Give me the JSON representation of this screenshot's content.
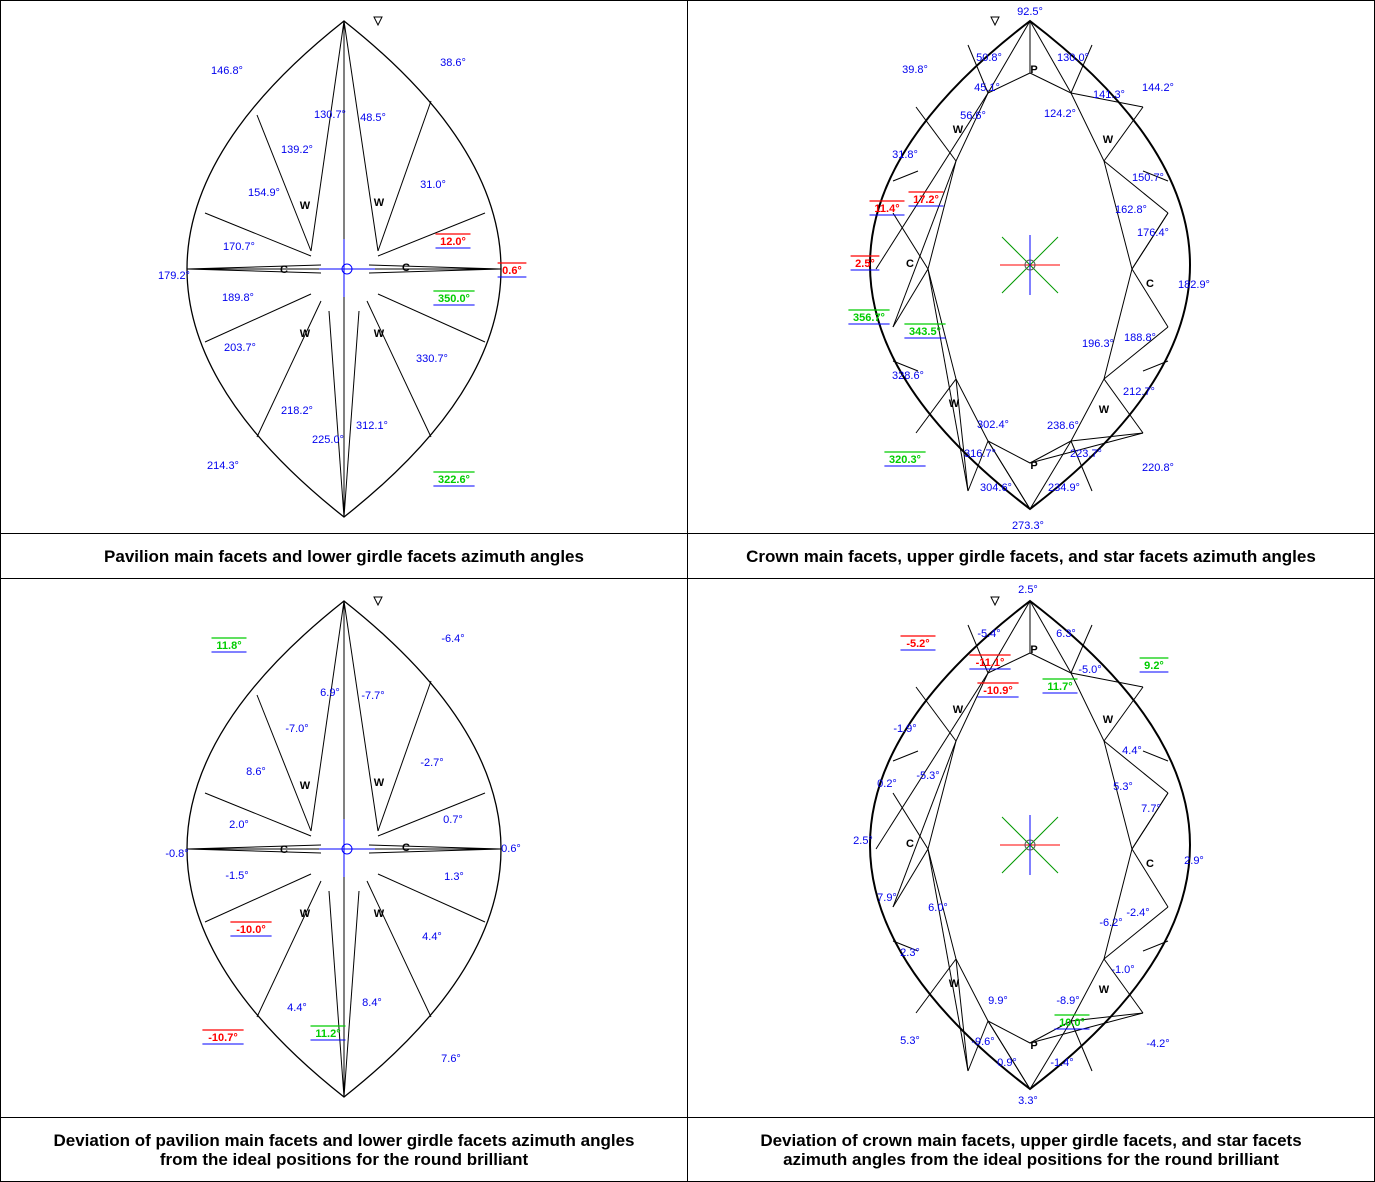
{
  "panels": [
    {
      "id": "pavilion-azimuth",
      "caption": "Pavilion main facets and lower girdle facets azimuth angles",
      "facet_letters": [
        "W",
        "W",
        "C",
        "C",
        "W",
        "W"
      ],
      "labels": [
        {
          "t": "146.8°",
          "c": "blue",
          "u": false
        },
        {
          "t": "38.6°",
          "c": "blue",
          "u": false
        },
        {
          "t": "130.7°",
          "c": "blue",
          "u": false
        },
        {
          "t": "48.5°",
          "c": "blue",
          "u": false
        },
        {
          "t": "139.2°",
          "c": "blue",
          "u": false
        },
        {
          "t": "154.9°",
          "c": "blue",
          "u": false
        },
        {
          "t": "31.0°",
          "c": "blue",
          "u": false
        },
        {
          "t": "12.0°",
          "c": "red",
          "u": true
        },
        {
          "t": "170.7°",
          "c": "blue",
          "u": false
        },
        {
          "t": "179.2°",
          "c": "blue",
          "u": false
        },
        {
          "t": "0.6°",
          "c": "red",
          "u": true
        },
        {
          "t": "189.8°",
          "c": "blue",
          "u": false
        },
        {
          "t": "350.0°",
          "c": "green",
          "u": true
        },
        {
          "t": "203.7°",
          "c": "blue",
          "u": false
        },
        {
          "t": "330.7°",
          "c": "blue",
          "u": false
        },
        {
          "t": "218.2°",
          "c": "blue",
          "u": false
        },
        {
          "t": "312.1°",
          "c": "blue",
          "u": false
        },
        {
          "t": "225.0°",
          "c": "blue",
          "u": false
        },
        {
          "t": "214.3°",
          "c": "blue",
          "u": false
        },
        {
          "t": "322.6°",
          "c": "green",
          "u": true
        }
      ]
    },
    {
      "id": "crown-azimuth",
      "caption": "Crown main facets, upper girdle facets, and star facets azimuth angles",
      "facet_letters": [
        "P",
        "W",
        "W",
        "C",
        "C",
        "W",
        "W",
        "P"
      ],
      "labels": [
        {
          "t": "92.5°",
          "c": "blue",
          "u": false
        },
        {
          "t": "50.8°",
          "c": "blue",
          "u": false
        },
        {
          "t": "130.0°",
          "c": "blue",
          "u": false
        },
        {
          "t": "39.8°",
          "c": "blue",
          "u": false
        },
        {
          "t": "45.1°",
          "c": "blue",
          "u": false
        },
        {
          "t": "141.3°",
          "c": "blue",
          "u": false
        },
        {
          "t": "144.2°",
          "c": "blue",
          "u": false
        },
        {
          "t": "56.6°",
          "c": "blue",
          "u": false
        },
        {
          "t": "124.2°",
          "c": "blue",
          "u": false
        },
        {
          "t": "31.8°",
          "c": "blue",
          "u": false
        },
        {
          "t": "150.7°",
          "c": "blue",
          "u": false
        },
        {
          "t": "11.4°",
          "c": "red",
          "u": true
        },
        {
          "t": "17.2°",
          "c": "red",
          "u": true
        },
        {
          "t": "162.8°",
          "c": "blue",
          "u": false
        },
        {
          "t": "176.4°",
          "c": "blue",
          "u": false
        },
        {
          "t": "2.5°",
          "c": "red",
          "u": true
        },
        {
          "t": "182.9°",
          "c": "blue",
          "u": false
        },
        {
          "t": "356.7°",
          "c": "green",
          "u": true
        },
        {
          "t": "343.5°",
          "c": "green",
          "u": true
        },
        {
          "t": "196.3°",
          "c": "blue",
          "u": false
        },
        {
          "t": "188.8°",
          "c": "blue",
          "u": false
        },
        {
          "t": "328.6°",
          "c": "blue",
          "u": false
        },
        {
          "t": "212.7°",
          "c": "blue",
          "u": false
        },
        {
          "t": "302.4°",
          "c": "blue",
          "u": false
        },
        {
          "t": "238.6°",
          "c": "blue",
          "u": false
        },
        {
          "t": "320.3°",
          "c": "green",
          "u": true
        },
        {
          "t": "316.7°",
          "c": "blue",
          "u": false
        },
        {
          "t": "223.7°",
          "c": "blue",
          "u": false
        },
        {
          "t": "220.8°",
          "c": "blue",
          "u": false
        },
        {
          "t": "304.6°",
          "c": "blue",
          "u": false
        },
        {
          "t": "234.9°",
          "c": "blue",
          "u": false
        },
        {
          "t": "273.3°",
          "c": "blue",
          "u": false
        }
      ]
    },
    {
      "id": "pavilion-deviation",
      "caption": "Deviation of pavilion main facets and lower girdle facets azimuth angles from the ideal positions for the round brilliant",
      "facet_letters": [
        "W",
        "W",
        "C",
        "C",
        "W",
        "W"
      ],
      "labels": [
        {
          "t": "11.8°",
          "c": "green",
          "u": true
        },
        {
          "t": "-6.4°",
          "c": "blue",
          "u": false
        },
        {
          "t": "6.9°",
          "c": "blue",
          "u": false
        },
        {
          "t": "-7.7°",
          "c": "blue",
          "u": false
        },
        {
          "t": "-7.0°",
          "c": "blue",
          "u": false
        },
        {
          "t": "8.6°",
          "c": "blue",
          "u": false
        },
        {
          "t": "-2.7°",
          "c": "blue",
          "u": false
        },
        {
          "t": "0.7°",
          "c": "blue",
          "u": false
        },
        {
          "t": "2.0°",
          "c": "blue",
          "u": false
        },
        {
          "t": "-0.8°",
          "c": "blue",
          "u": false
        },
        {
          "t": "0.6°",
          "c": "blue",
          "u": false
        },
        {
          "t": "-1.5°",
          "c": "blue",
          "u": false
        },
        {
          "t": "1.3°",
          "c": "blue",
          "u": false
        },
        {
          "t": "-10.0°",
          "c": "red",
          "u": true
        },
        {
          "t": "4.4°",
          "c": "blue",
          "u": false
        },
        {
          "t": "4.4°",
          "c": "blue",
          "u": false
        },
        {
          "t": "11.2°",
          "c": "green",
          "u": true
        },
        {
          "t": "8.4°",
          "c": "blue",
          "u": false
        },
        {
          "t": "-10.7°",
          "c": "red",
          "u": true
        },
        {
          "t": "7.6°",
          "c": "blue",
          "u": false
        }
      ]
    },
    {
      "id": "crown-deviation",
      "caption": "Deviation of crown main facets, upper girdle facets, and star facets azimuth angles from the ideal positions for the round brilliant",
      "facet_letters": [
        "P",
        "W",
        "W",
        "C",
        "C",
        "W",
        "W",
        "P"
      ],
      "labels": [
        {
          "t": "2.5°",
          "c": "blue",
          "u": false
        },
        {
          "t": "-5.4°",
          "c": "blue",
          "u": false
        },
        {
          "t": "6.3°",
          "c": "blue",
          "u": false
        },
        {
          "t": "-5.2°",
          "c": "red",
          "u": true
        },
        {
          "t": "-11.1°",
          "c": "red",
          "u": true
        },
        {
          "t": "-5.0°",
          "c": "blue",
          "u": false
        },
        {
          "t": "9.2°",
          "c": "green",
          "u": true
        },
        {
          "t": "-10.9°",
          "c": "red",
          "u": true
        },
        {
          "t": "11.7°",
          "c": "green",
          "u": true
        },
        {
          "t": "-1.9°",
          "c": "blue",
          "u": false
        },
        {
          "t": "4.4°",
          "c": "blue",
          "u": false
        },
        {
          "t": "0.2°",
          "c": "blue",
          "u": false
        },
        {
          "t": "-5.3°",
          "c": "blue",
          "u": false
        },
        {
          "t": "5.3°",
          "c": "blue",
          "u": false
        },
        {
          "t": "7.7°",
          "c": "blue",
          "u": false
        },
        {
          "t": "2.5°",
          "c": "blue",
          "u": false
        },
        {
          "t": "2.9°",
          "c": "blue",
          "u": false
        },
        {
          "t": "7.9°",
          "c": "blue",
          "u": false
        },
        {
          "t": "6.0°",
          "c": "blue",
          "u": false
        },
        {
          "t": "-6.2°",
          "c": "blue",
          "u": false
        },
        {
          "t": "-2.4°",
          "c": "blue",
          "u": false
        },
        {
          "t": "2.3°",
          "c": "blue",
          "u": false
        },
        {
          "t": "-1.0°",
          "c": "blue",
          "u": false
        },
        {
          "t": "9.9°",
          "c": "blue",
          "u": false
        },
        {
          "t": "-8.9°",
          "c": "blue",
          "u": false
        },
        {
          "t": "10.0°",
          "c": "green",
          "u": true
        },
        {
          "t": "5.3°",
          "c": "blue",
          "u": false
        },
        {
          "t": "-9.6°",
          "c": "blue",
          "u": false
        },
        {
          "t": "-4.2°",
          "c": "blue",
          "u": false
        },
        {
          "t": "0.9°",
          "c": "blue",
          "u": false
        },
        {
          "t": "-1.4°",
          "c": "blue",
          "u": false
        },
        {
          "t": "3.3°",
          "c": "blue",
          "u": false
        }
      ]
    }
  ],
  "colors": {
    "blue": "#0000ee",
    "red": "#ff0000",
    "green": "#00cc00",
    "line": "#000000",
    "axis_blue": "#0000ff",
    "axis_red": "#ff0000",
    "axis_green": "#009900"
  }
}
